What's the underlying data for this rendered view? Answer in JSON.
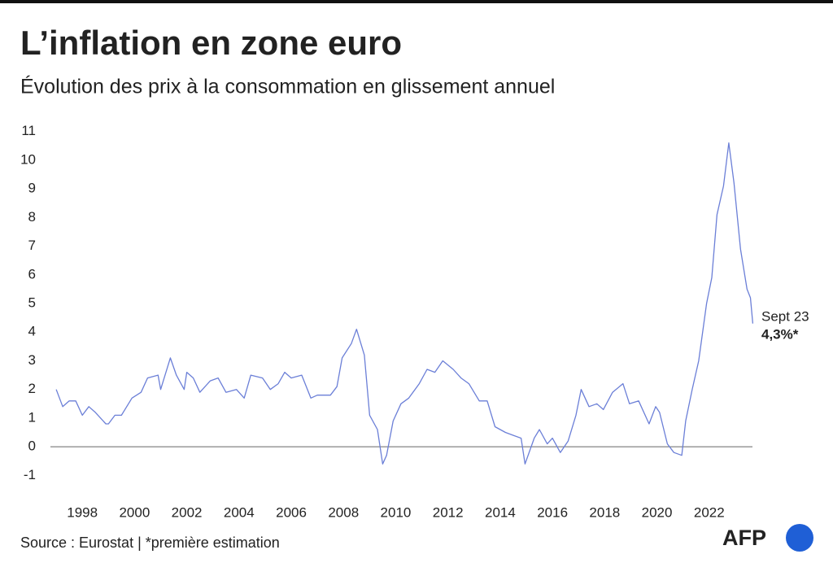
{
  "chart_data": {
    "type": "line",
    "title": "L’inflation en zone euro",
    "subtitle": "Évolution des prix à la consommation en glissement annuel",
    "x": [
      1997.0,
      1997.25,
      1997.5,
      1997.75,
      1998.0,
      1998.25,
      1998.5,
      1998.9,
      1999.0,
      1999.25,
      1999.5,
      1999.9,
      2000.25,
      2000.5,
      2000.9,
      2001.0,
      2001.37,
      2001.6,
      2001.9,
      2002.0,
      2002.25,
      2002.5,
      2002.9,
      2003.2,
      2003.5,
      2003.9,
      2004.2,
      2004.45,
      2004.9,
      2005.2,
      2005.5,
      2005.75,
      2006.0,
      2006.4,
      2006.75,
      2007.0,
      2007.5,
      2007.75,
      2007.95,
      2008.3,
      2008.5,
      2008.8,
      2009.0,
      2009.3,
      2009.5,
      2009.65,
      2009.9,
      2010.2,
      2010.5,
      2010.9,
      2011.2,
      2011.5,
      2011.8,
      2012.2,
      2012.5,
      2012.8,
      2013.2,
      2013.5,
      2013.8,
      2014.2,
      2014.5,
      2014.8,
      2014.95,
      2015.3,
      2015.5,
      2015.8,
      2016.0,
      2016.3,
      2016.6,
      2016.9,
      2017.1,
      2017.4,
      2017.7,
      2017.95,
      2018.3,
      2018.7,
      2018.95,
      2019.3,
      2019.7,
      2019.95,
      2020.1,
      2020.4,
      2020.65,
      2020.95,
      2021.1,
      2021.35,
      2021.6,
      2021.9,
      2022.1,
      2022.3,
      2022.55,
      2022.75,
      2022.95,
      2023.2,
      2023.45,
      2023.58,
      2023.67
    ],
    "values": [
      2.0,
      1.4,
      1.6,
      1.6,
      1.1,
      1.4,
      1.2,
      0.8,
      0.8,
      1.1,
      1.1,
      1.7,
      1.9,
      2.4,
      2.5,
      2.0,
      3.1,
      2.5,
      2.0,
      2.6,
      2.4,
      1.9,
      2.3,
      2.4,
      1.9,
      2.0,
      1.7,
      2.5,
      2.4,
      2.0,
      2.2,
      2.6,
      2.4,
      2.5,
      1.7,
      1.8,
      1.8,
      2.1,
      3.1,
      3.6,
      4.1,
      3.2,
      1.1,
      0.6,
      -0.6,
      -0.3,
      0.9,
      1.5,
      1.7,
      2.2,
      2.7,
      2.6,
      3.0,
      2.7,
      2.4,
      2.2,
      1.6,
      1.6,
      0.7,
      0.5,
      0.4,
      0.3,
      -0.6,
      0.3,
      0.6,
      0.1,
      0.3,
      -0.2,
      0.2,
      1.1,
      2.0,
      1.4,
      1.5,
      1.3,
      1.9,
      2.2,
      1.5,
      1.6,
      0.8,
      1.4,
      1.2,
      0.1,
      -0.2,
      -0.3,
      0.9,
      2.0,
      3.0,
      5.0,
      5.9,
      8.1,
      9.1,
      10.6,
      9.2,
      6.9,
      5.5,
      5.2,
      4.3
    ],
    "color": "#6b7fd7",
    "xlim": [
      1996.5,
      2024.0
    ],
    "xticks": [
      1998,
      2000,
      2002,
      2004,
      2006,
      2008,
      2010,
      2012,
      2014,
      2016,
      2018,
      2020,
      2022
    ],
    "ylim": [
      -1.5,
      11.5
    ],
    "yticks": [
      -1,
      0,
      1,
      2,
      3,
      4,
      5,
      6,
      7,
      8,
      9,
      10,
      11
    ],
    "annotations": [
      "Sept 23",
      "4,3%*"
    ],
    "source": "Source : Eurostat | *première estimation",
    "logo": "AFP"
  }
}
